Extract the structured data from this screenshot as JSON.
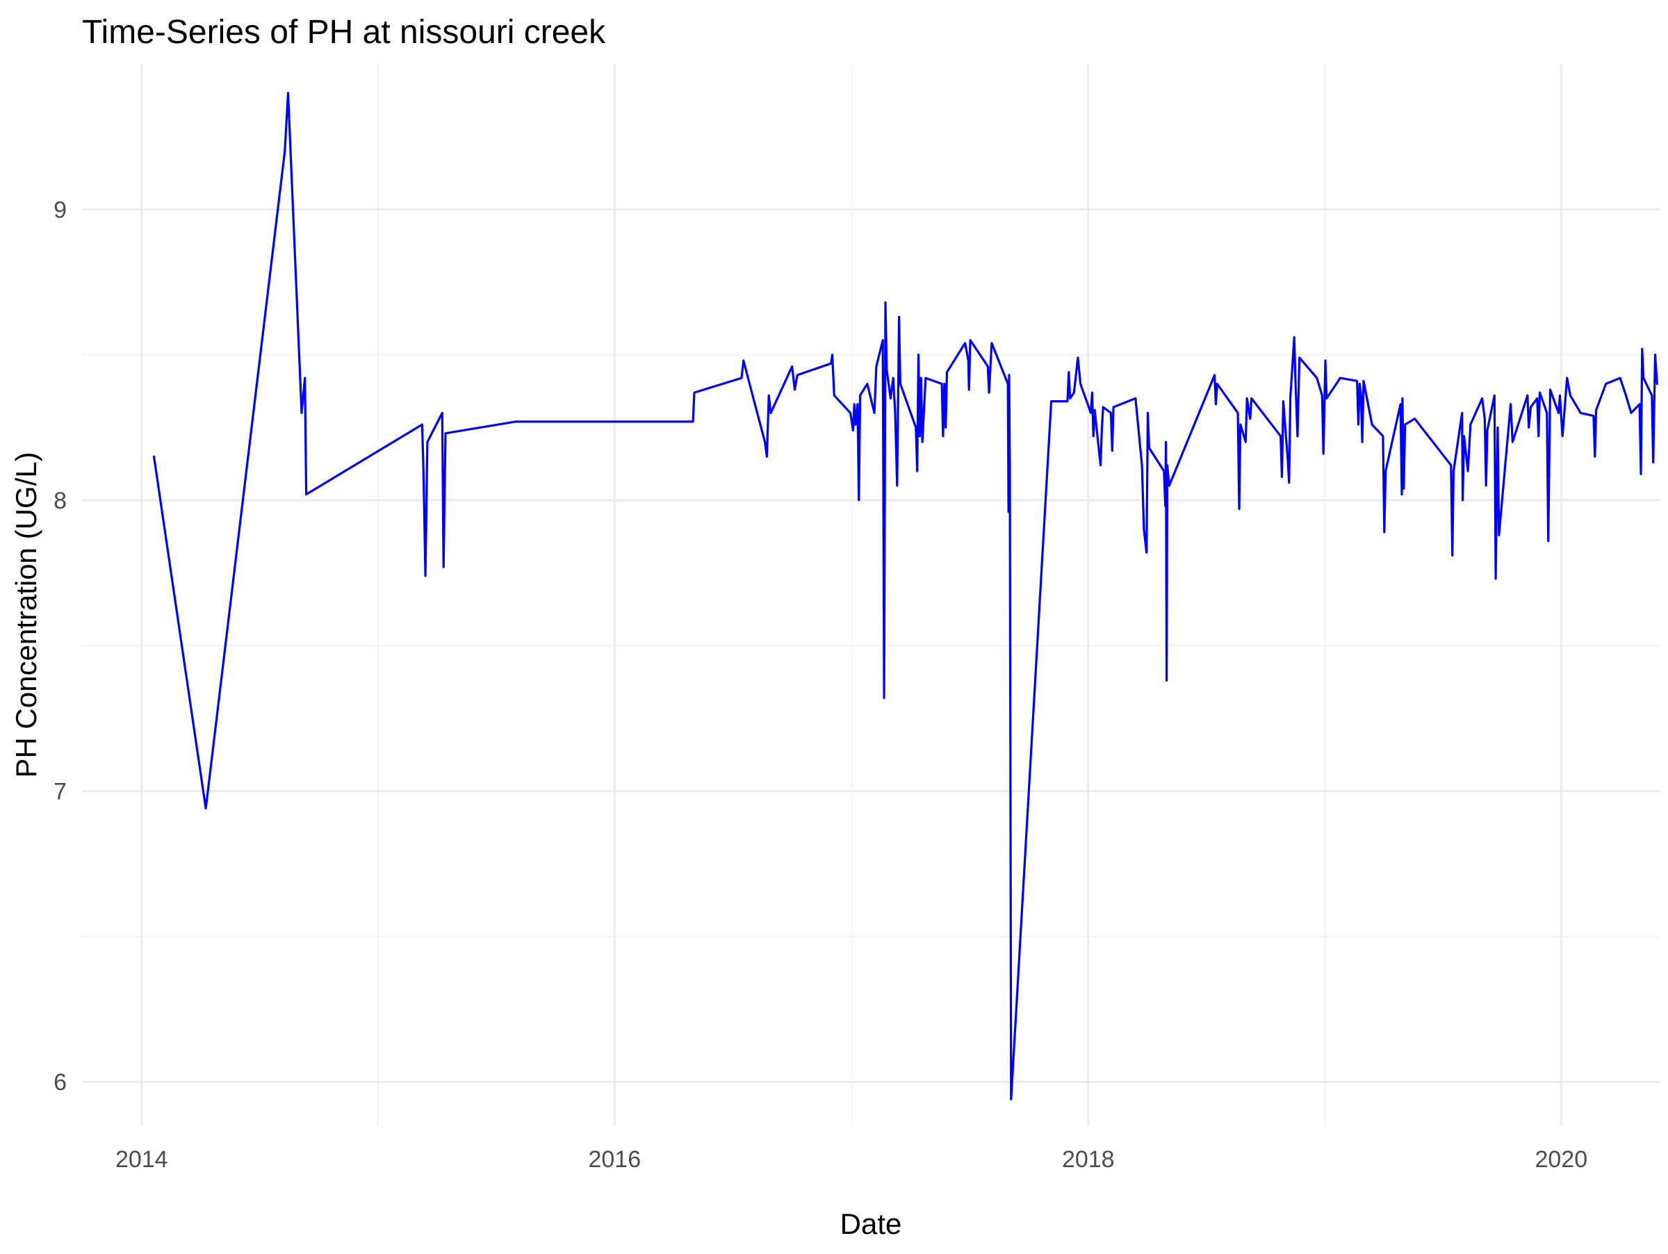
{
  "chart_data": {
    "type": "line",
    "title": "Time-Series of PH at nissouri creek",
    "xlabel": "Date",
    "ylabel": "PH Concentration (UG/L)",
    "x_axis_type": "date",
    "xlim": [
      "2013-10-01",
      "2020-06-01"
    ],
    "ylim": [
      5.85,
      9.5
    ],
    "x_ticks": [
      {
        "label": "2014",
        "value": "2014-01-01"
      },
      {
        "label": "2016",
        "value": "2016-01-01"
      },
      {
        "label": "2018",
        "value": "2018-01-01"
      },
      {
        "label": "2020",
        "value": "2020-01-01"
      }
    ],
    "x_minor_ticks": [
      "2015-01-01",
      "2017-01-01",
      "2019-01-01"
    ],
    "y_ticks": [
      {
        "label": "6",
        "value": 6
      },
      {
        "label": "7",
        "value": 7
      },
      {
        "label": "8",
        "value": 8
      },
      {
        "label": "9",
        "value": 9
      }
    ],
    "y_minor_ticks": [
      6.5,
      7.5,
      8.5
    ],
    "grid": true,
    "legend": "none",
    "series": [
      {
        "color": "#0000ff",
        "points": [
          [
            "2014-01-20",
            8.15
          ],
          [
            "2014-04-10",
            6.94
          ],
          [
            "2014-08-10",
            9.2
          ],
          [
            "2014-08-15",
            9.4
          ],
          [
            "2014-09-05",
            8.3
          ],
          [
            "2014-09-10",
            8.42
          ],
          [
            "2014-09-12",
            8.02
          ],
          [
            "2015-03-10",
            8.26
          ],
          [
            "2015-03-12",
            8.1
          ],
          [
            "2015-03-15",
            7.74
          ],
          [
            "2015-03-18",
            8.2
          ],
          [
            "2015-04-10",
            8.3
          ],
          [
            "2015-04-12",
            7.77
          ],
          [
            "2015-04-15",
            8.23
          ],
          [
            "2015-08-01",
            8.27
          ],
          [
            "2016-05-01",
            8.27
          ],
          [
            "2016-05-03",
            8.37
          ],
          [
            "2016-07-15",
            8.42
          ],
          [
            "2016-07-18",
            8.48
          ],
          [
            "2016-07-25",
            8.42
          ],
          [
            "2016-08-20",
            8.2
          ],
          [
            "2016-08-23",
            8.15
          ],
          [
            "2016-08-26",
            8.36
          ],
          [
            "2016-08-29",
            8.3
          ],
          [
            "2016-10-01",
            8.46
          ],
          [
            "2016-10-05",
            8.38
          ],
          [
            "2016-10-09",
            8.43
          ],
          [
            "2016-11-30",
            8.47
          ],
          [
            "2016-12-02",
            8.5
          ],
          [
            "2016-12-05",
            8.36
          ],
          [
            "2016-12-30",
            8.3
          ],
          [
            "2017-01-03",
            8.24
          ],
          [
            "2017-01-05",
            8.33
          ],
          [
            "2017-01-07",
            8.26
          ],
          [
            "2017-01-10",
            8.33
          ],
          [
            "2017-01-12",
            8.0
          ],
          [
            "2017-01-14",
            8.36
          ],
          [
            "2017-01-25",
            8.4
          ],
          [
            "2017-02-05",
            8.3
          ],
          [
            "2017-02-08",
            8.46
          ],
          [
            "2017-02-18",
            8.55
          ],
          [
            "2017-02-20",
            7.32
          ],
          [
            "2017-02-22",
            8.68
          ],
          [
            "2017-02-24",
            8.45
          ],
          [
            "2017-03-02",
            8.35
          ],
          [
            "2017-03-06",
            8.42
          ],
          [
            "2017-03-09",
            8.3
          ],
          [
            "2017-03-12",
            8.05
          ],
          [
            "2017-03-15",
            8.63
          ],
          [
            "2017-03-17",
            8.4
          ],
          [
            "2017-04-10",
            8.25
          ],
          [
            "2017-04-12",
            8.1
          ],
          [
            "2017-04-14",
            8.5
          ],
          [
            "2017-04-16",
            8.22
          ],
          [
            "2017-04-18",
            8.42
          ],
          [
            "2017-04-20",
            8.2
          ],
          [
            "2017-04-25",
            8.42
          ],
          [
            "2017-05-20",
            8.4
          ],
          [
            "2017-05-22",
            8.22
          ],
          [
            "2017-05-24",
            8.4
          ],
          [
            "2017-05-26",
            8.25
          ],
          [
            "2017-05-28",
            8.44
          ],
          [
            "2017-06-25",
            8.54
          ],
          [
            "2017-06-30",
            8.48
          ],
          [
            "2017-07-01",
            8.38
          ],
          [
            "2017-07-03",
            8.55
          ],
          [
            "2017-07-30",
            8.46
          ],
          [
            "2017-08-01",
            8.37
          ],
          [
            "2017-08-05",
            8.54
          ],
          [
            "2017-08-30",
            8.4
          ],
          [
            "2017-08-31",
            7.96
          ],
          [
            "2017-09-01",
            8.43
          ],
          [
            "2017-09-02",
            8.1
          ],
          [
            "2017-09-04",
            5.94
          ],
          [
            "2017-11-05",
            8.34
          ],
          [
            "2017-11-30",
            8.34
          ],
          [
            "2017-12-02",
            8.44
          ],
          [
            "2017-12-04",
            8.35
          ],
          [
            "2017-12-10",
            8.37
          ],
          [
            "2017-12-16",
            8.49
          ],
          [
            "2017-12-20",
            8.4
          ],
          [
            "2018-01-05",
            8.3
          ],
          [
            "2018-01-07",
            8.37
          ],
          [
            "2018-01-09",
            8.22
          ],
          [
            "2018-01-11",
            8.31
          ],
          [
            "2018-01-20",
            8.12
          ],
          [
            "2018-01-22",
            8.24
          ],
          [
            "2018-01-24",
            8.32
          ],
          [
            "2018-02-05",
            8.3
          ],
          [
            "2018-02-07",
            8.17
          ],
          [
            "2018-02-09",
            8.32
          ],
          [
            "2018-03-15",
            8.35
          ],
          [
            "2018-03-25",
            8.12
          ],
          [
            "2018-03-28",
            7.9
          ],
          [
            "2018-04-01",
            7.82
          ],
          [
            "2018-04-03",
            8.3
          ],
          [
            "2018-04-05",
            8.18
          ],
          [
            "2018-04-28",
            8.1
          ],
          [
            "2018-04-30",
            7.98
          ],
          [
            "2018-05-01",
            8.2
          ],
          [
            "2018-05-02",
            7.38
          ],
          [
            "2018-05-03",
            8.12
          ],
          [
            "2018-05-06",
            8.05
          ],
          [
            "2018-07-15",
            8.43
          ],
          [
            "2018-07-17",
            8.33
          ],
          [
            "2018-07-19",
            8.4
          ],
          [
            "2018-08-20",
            8.3
          ],
          [
            "2018-08-22",
            7.97
          ],
          [
            "2018-08-24",
            8.26
          ],
          [
            "2018-09-01",
            8.2
          ],
          [
            "2018-09-03",
            8.35
          ],
          [
            "2018-09-08",
            8.28
          ],
          [
            "2018-09-10",
            8.35
          ],
          [
            "2018-10-25",
            8.22
          ],
          [
            "2018-10-27",
            8.08
          ],
          [
            "2018-10-29",
            8.34
          ],
          [
            "2018-11-05",
            8.14
          ],
          [
            "2018-11-07",
            8.06
          ],
          [
            "2018-11-09",
            8.35
          ],
          [
            "2018-11-15",
            8.56
          ],
          [
            "2018-11-17",
            8.4
          ],
          [
            "2018-11-20",
            8.22
          ],
          [
            "2018-11-23",
            8.49
          ],
          [
            "2018-12-20",
            8.42
          ],
          [
            "2018-12-28",
            8.36
          ],
          [
            "2018-12-30",
            8.16
          ],
          [
            "2019-01-02",
            8.48
          ],
          [
            "2019-01-04",
            8.35
          ],
          [
            "2019-01-25",
            8.42
          ],
          [
            "2019-02-20",
            8.41
          ],
          [
            "2019-02-22",
            8.26
          ],
          [
            "2019-02-24",
            8.4
          ],
          [
            "2019-02-26",
            8.36
          ],
          [
            "2019-02-28",
            8.2
          ],
          [
            "2019-03-02",
            8.41
          ],
          [
            "2019-03-15",
            8.26
          ],
          [
            "2019-04-01",
            8.22
          ],
          [
            "2019-04-03",
            7.89
          ],
          [
            "2019-04-05",
            8.1
          ],
          [
            "2019-04-28",
            8.33
          ],
          [
            "2019-04-30",
            8.02
          ],
          [
            "2019-05-01",
            8.35
          ],
          [
            "2019-05-03",
            8.04
          ],
          [
            "2019-05-05",
            8.26
          ],
          [
            "2019-05-20",
            8.28
          ],
          [
            "2019-07-15",
            8.12
          ],
          [
            "2019-07-17",
            7.81
          ],
          [
            "2019-07-19",
            8.1
          ],
          [
            "2019-08-01",
            8.3
          ],
          [
            "2019-08-02",
            8.0
          ],
          [
            "2019-08-04",
            8.22
          ],
          [
            "2019-08-10",
            8.1
          ],
          [
            "2019-08-14",
            8.26
          ],
          [
            "2019-09-01",
            8.35
          ],
          [
            "2019-09-05",
            8.28
          ],
          [
            "2019-09-07",
            8.05
          ],
          [
            "2019-09-09",
            8.24
          ],
          [
            "2019-09-20",
            8.36
          ],
          [
            "2019-09-22",
            7.73
          ],
          [
            "2019-09-25",
            8.25
          ],
          [
            "2019-09-27",
            7.88
          ],
          [
            "2019-10-15",
            8.33
          ],
          [
            "2019-10-18",
            8.2
          ],
          [
            "2019-11-10",
            8.36
          ],
          [
            "2019-11-12",
            8.25
          ],
          [
            "2019-11-15",
            8.32
          ],
          [
            "2019-11-25",
            8.35
          ],
          [
            "2019-11-27",
            8.22
          ],
          [
            "2019-11-29",
            8.37
          ],
          [
            "2019-12-10",
            8.3
          ],
          [
            "2019-12-12",
            7.86
          ],
          [
            "2019-12-15",
            8.38
          ],
          [
            "2019-12-28",
            8.3
          ],
          [
            "2019-12-30",
            8.36
          ],
          [
            "2020-01-03",
            8.22
          ],
          [
            "2020-01-10",
            8.42
          ],
          [
            "2020-01-15",
            8.36
          ],
          [
            "2020-01-31",
            8.3
          ],
          [
            "2020-02-20",
            8.29
          ],
          [
            "2020-02-22",
            8.15
          ],
          [
            "2020-02-24",
            8.31
          ],
          [
            "2020-03-10",
            8.4
          ],
          [
            "2020-04-01",
            8.42
          ],
          [
            "2020-04-10",
            8.36
          ],
          [
            "2020-04-18",
            8.3
          ],
          [
            "2020-05-01",
            8.33
          ],
          [
            "2020-05-03",
            8.09
          ],
          [
            "2020-05-05",
            8.52
          ],
          [
            "2020-05-07",
            8.42
          ],
          [
            "2020-05-20",
            8.36
          ],
          [
            "2020-05-22",
            8.13
          ],
          [
            "2020-05-25",
            8.5
          ],
          [
            "2020-05-28",
            8.4
          ]
        ]
      }
    ]
  }
}
